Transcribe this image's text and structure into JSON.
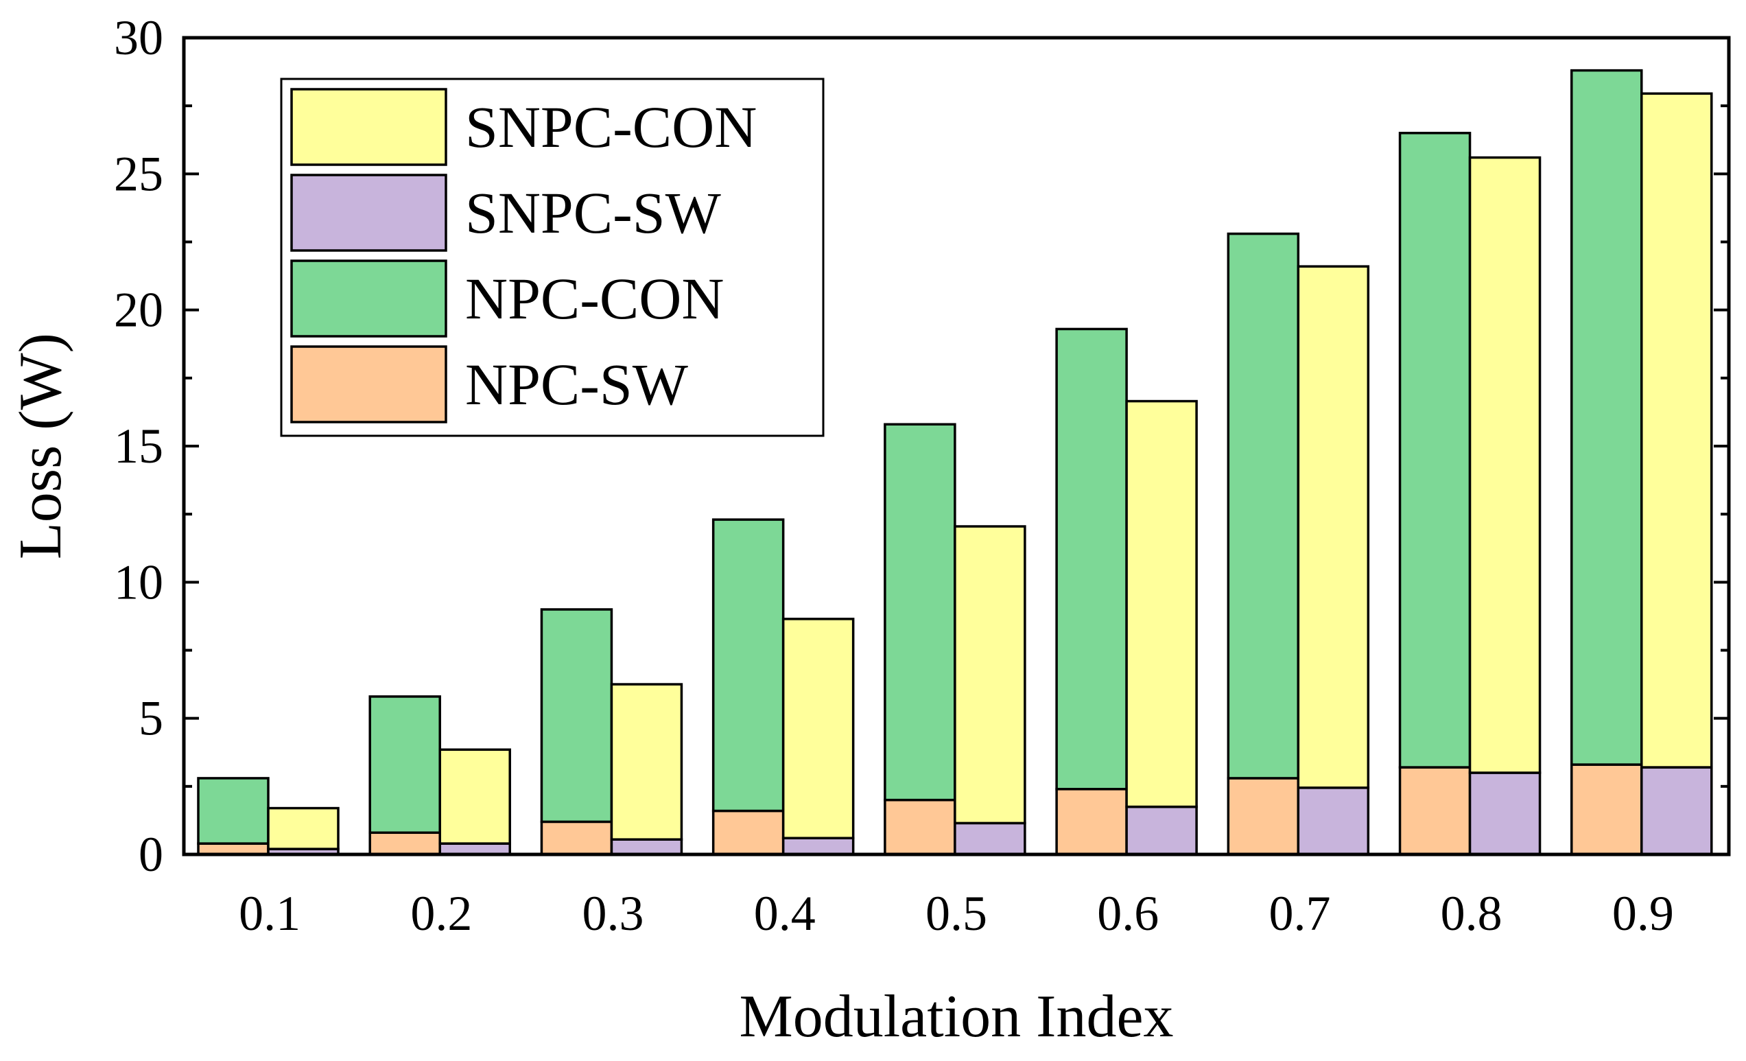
{
  "chart_data": {
    "type": "bar",
    "stacked": true,
    "grouped": true,
    "title": "",
    "xlabel": "Modulation Index",
    "ylabel": "Loss (W)",
    "ylim": [
      0,
      30
    ],
    "yticks": [
      "0",
      "5",
      "10",
      "15",
      "20",
      "25",
      "30"
    ],
    "categories": [
      "0.1",
      "0.2",
      "0.3",
      "0.4",
      "0.5",
      "0.6",
      "0.7",
      "0.8",
      "0.9"
    ],
    "legend_position": "top-left",
    "groups": [
      {
        "name": "NPC",
        "series": [
          {
            "name": "NPC-SW",
            "color": "#FFC896",
            "values": [
              0.4,
              0.8,
              1.2,
              1.6,
              2.0,
              2.4,
              2.8,
              3.2,
              3.3
            ]
          },
          {
            "name": "NPC-CON",
            "color": "#7DD896",
            "values": [
              2.4,
              5.0,
              7.8,
              10.7,
              13.8,
              16.9,
              20.0,
              23.3,
              25.5
            ]
          }
        ]
      },
      {
        "name": "SNPC",
        "series": [
          {
            "name": "SNPC-SW",
            "color": "#C8B4DC",
            "values": [
              0.2,
              0.4,
              0.55,
              0.6,
              1.15,
              1.75,
              2.45,
              3.0,
              3.2
            ]
          },
          {
            "name": "SNPC-CON",
            "color": "#FFFF9B",
            "values": [
              1.5,
              3.45,
              5.7,
              8.05,
              10.9,
              14.9,
              19.15,
              22.6,
              24.75
            ]
          }
        ]
      }
    ],
    "legend": [
      {
        "label": "SNPC-CON",
        "color": "#FFFF9B"
      },
      {
        "label": "SNPC-SW",
        "color": "#C8B4DC"
      },
      {
        "label": "NPC-CON",
        "color": "#7DD896"
      },
      {
        "label": "NPC-SW",
        "color": "#FFC896"
      }
    ]
  }
}
